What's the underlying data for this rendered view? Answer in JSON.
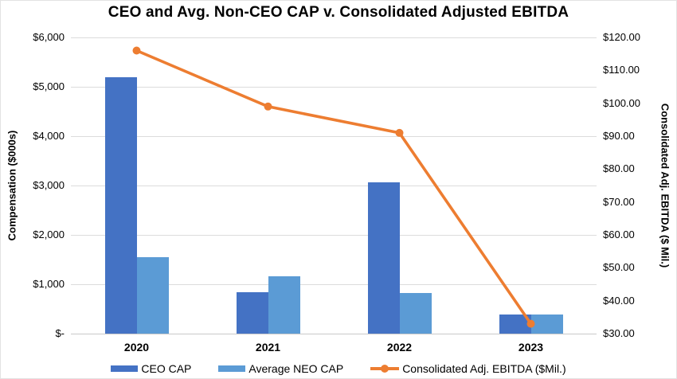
{
  "chart_data": {
    "type": "combo-bar-line",
    "title": "CEO and Avg. Non-CEO CAP v. Consolidated Adjusted EBITDA",
    "categories": [
      "2020",
      "2021",
      "2022",
      "2023"
    ],
    "series": [
      {
        "name": "CEO CAP",
        "type": "bar",
        "axis": "left",
        "color": "#4472C4",
        "values": [
          5200,
          840,
          3070,
          395
        ]
      },
      {
        "name": "Average NEO CAP",
        "type": "bar",
        "axis": "left",
        "color": "#5B9BD5",
        "values": [
          1550,
          1170,
          830,
          390
        ]
      },
      {
        "name": "Consolidated Adj. EBITDA ($Mil.)",
        "type": "line",
        "axis": "right",
        "color": "#ED7D31",
        "values": [
          116,
          99,
          91,
          33
        ]
      }
    ],
    "left_axis": {
      "label": "Compensation ($000s)",
      "range": [
        0,
        6000
      ],
      "ticks": [
        "$6,000",
        "$5,000",
        "$4,000",
        "$3,000",
        "$2,000",
        "$1,000",
        "$-"
      ]
    },
    "right_axis": {
      "label": "Consolidated Adj. EBITDA ($ Mil.)",
      "range": [
        30,
        120
      ],
      "ticks": [
        "$120.00",
        "$110.00",
        "$100.00",
        "$90.00",
        "$80.00",
        "$70.00",
        "$60.00",
        "$50.00",
        "$40.00",
        "$30.00"
      ]
    },
    "legend": [
      {
        "label": "CEO CAP",
        "type": "bar",
        "color": "#4472C4"
      },
      {
        "label": "Average NEO CAP",
        "type": "bar",
        "color": "#5B9BD5"
      },
      {
        "label": "Consolidated Adj. EBITDA ($Mil.)",
        "type": "line",
        "color": "#ED7D31"
      }
    ],
    "grid": {
      "horizontal": true,
      "vertical": false,
      "color": "#dcdcdc"
    },
    "legend_position": "bottom"
  }
}
